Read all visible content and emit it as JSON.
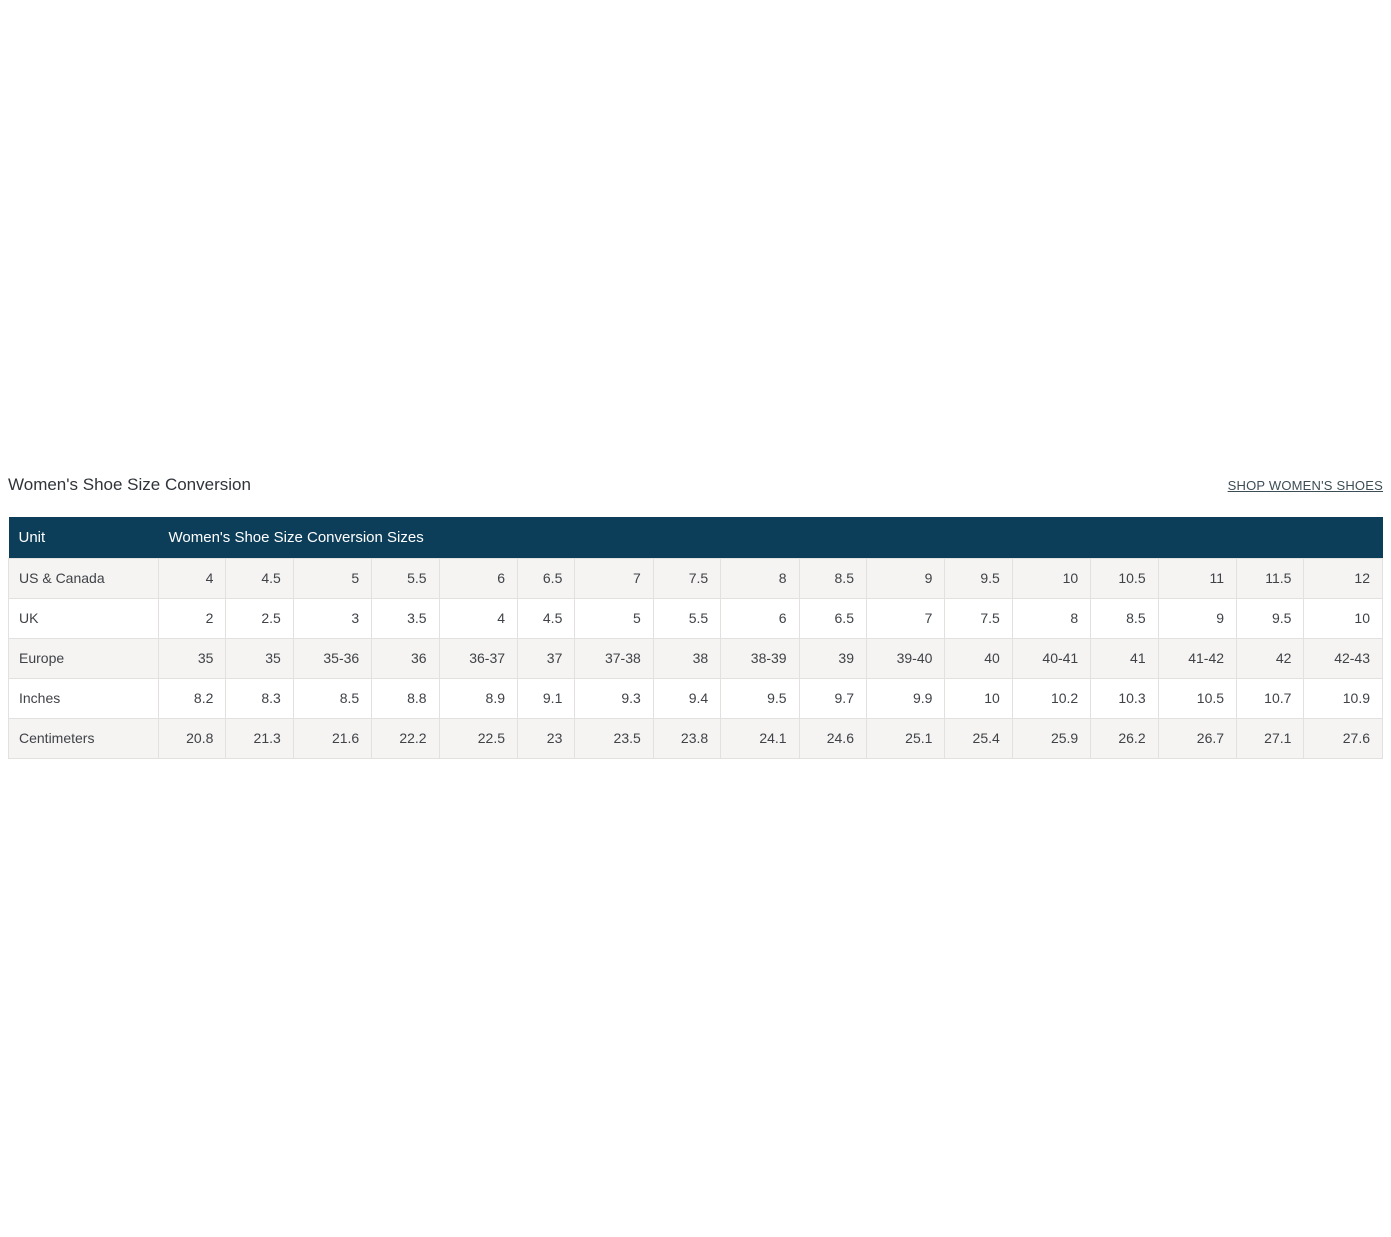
{
  "page": {
    "title": "Women's Shoe Size Conversion",
    "shop_link_label": "SHOP WOMEN'S SHOES"
  },
  "table": {
    "header": {
      "unit": "Unit",
      "sizes": "Women's Shoe Size Conversion Sizes"
    },
    "rows": [
      {
        "label": "US & Canada",
        "values": [
          "4",
          "4.5",
          "5",
          "5.5",
          "6",
          "6.5",
          "7",
          "7.5",
          "8",
          "8.5",
          "9",
          "9.5",
          "10",
          "10.5",
          "11",
          "11.5",
          "12"
        ]
      },
      {
        "label": "UK",
        "values": [
          "2",
          "2.5",
          "3",
          "3.5",
          "4",
          "4.5",
          "5",
          "5.5",
          "6",
          "6.5",
          "7",
          "7.5",
          "8",
          "8.5",
          "9",
          "9.5",
          "10"
        ]
      },
      {
        "label": "Europe",
        "values": [
          "35",
          "35",
          "35-36",
          "36",
          "36-37",
          "37",
          "37-38",
          "38",
          "38-39",
          "39",
          "39-40",
          "40",
          "40-41",
          "41",
          "41-42",
          "42",
          "42-43"
        ]
      },
      {
        "label": "Inches",
        "values": [
          "8.2",
          "8.3",
          "8.5",
          "8.8",
          "8.9",
          "9.1",
          "9.3",
          "9.4",
          "9.5",
          "9.7",
          "9.9",
          "10",
          "10.2",
          "10.3",
          "10.5",
          "10.7",
          "10.9"
        ]
      },
      {
        "label": "Centimeters",
        "values": [
          "20.8",
          "21.3",
          "21.6",
          "22.2",
          "22.5",
          "23",
          "23.5",
          "23.8",
          "24.1",
          "24.6",
          "25.1",
          "25.4",
          "25.9",
          "26.2",
          "26.7",
          "27.1",
          "27.6"
        ]
      }
    ]
  },
  "colors": {
    "header_bg": "#0d3e59",
    "header_text": "#ffffff",
    "row_stripe": "#f5f4f2",
    "border": "#e2e1e0",
    "body_text": "#3f4247",
    "title_text": "#30343a",
    "link_text": "#3d4d56"
  }
}
